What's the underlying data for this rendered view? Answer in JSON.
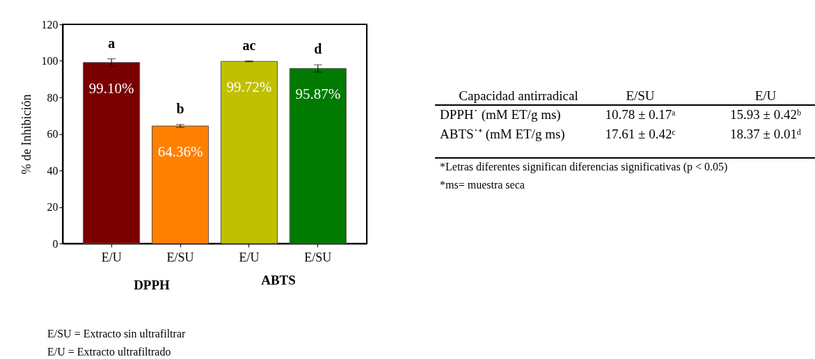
{
  "chart_data": {
    "type": "bar",
    "ylabel": "% de Inhibición",
    "categories": [
      "E/U",
      "E/SU",
      "E/U",
      "E/SU"
    ],
    "values": [
      99.1,
      64.36,
      99.72,
      95.87
    ],
    "colors": [
      "#7b0000",
      "#ff8000",
      "#c0c000",
      "#007a00"
    ],
    "errors": [
      2,
      0.8,
      0.2,
      2
    ],
    "value_labels": [
      "99.10%",
      "64.36%",
      "99.72%",
      "95.87%"
    ],
    "ylim": [
      0,
      120
    ],
    "yticks": [
      0,
      20,
      40,
      60,
      80,
      100,
      120
    ],
    "grid": false,
    "annotations": [
      "a",
      "b",
      "ac",
      "d",
      "DPPH",
      "ABTS",
      "Capacidad antirradical",
      "E/SU",
      "E/U",
      "DPPH˙ (mM ET/g ms)",
      "10.78 ± 0.17ᵃ",
      "15.93 ± 0.42ᵇ",
      "ABTS˙⁺ (mM ET/g ms)",
      "17.61 ± 0.42ᶜ",
      "18.37 ± 0.01ᵈ",
      "*Letras diferentes significan diferencias significativas (p < 0.05)",
      "*ms= muestra seca",
      "E/SU = Extracto sin ultrafiltrar",
      "E/U = Extracto ultrafiltrado"
    ]
  }
}
